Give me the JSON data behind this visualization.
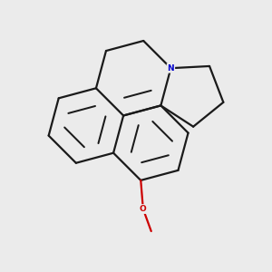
{
  "bg": "#ebebeb",
  "bond_color": "#1a1a1a",
  "N_color": "#0000cc",
  "O_color": "#cc0000",
  "lw": 1.6,
  "figsize": [
    3.0,
    3.0
  ],
  "dpi": 100
}
